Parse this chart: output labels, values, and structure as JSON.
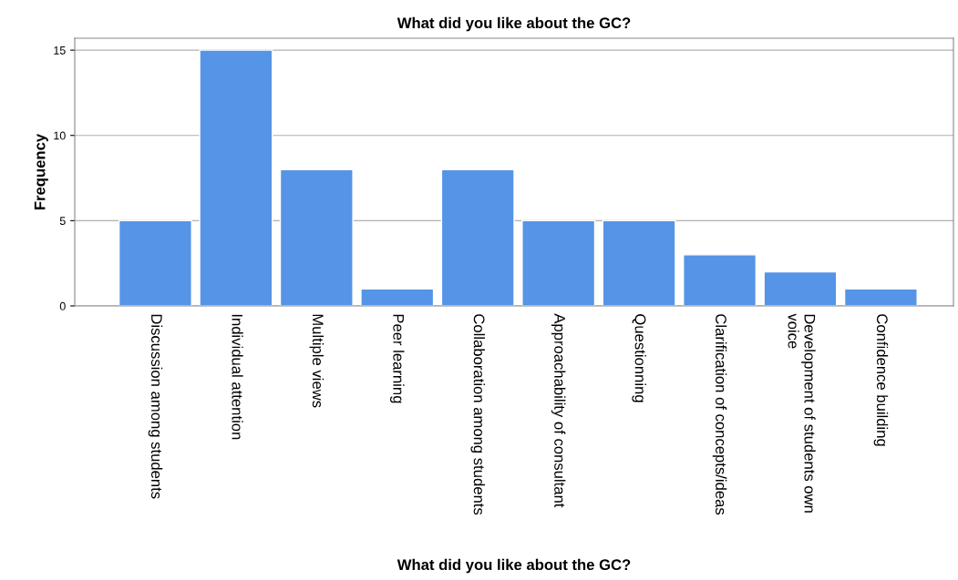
{
  "chart_data": {
    "type": "bar",
    "title": "What did you like about the GC?",
    "xlabel": "What did you like about the GC?",
    "ylabel": "Frequency",
    "categories": [
      "Discussion among students",
      "Individual attention",
      "Multiple views",
      "Peer learning",
      "Collaboration among students",
      "Approachability of consultant",
      "Questionning",
      "Clarification of concepts/ideas",
      "Development of students own\nvoice",
      "Confidence building"
    ],
    "values": [
      5,
      15,
      8,
      1,
      8,
      5,
      5,
      3,
      2,
      1
    ],
    "color": "#5594e6",
    "ylim": [
      0,
      15.7
    ],
    "yticks": [
      0,
      5,
      10,
      15
    ],
    "grid": "y",
    "legend": false
  }
}
